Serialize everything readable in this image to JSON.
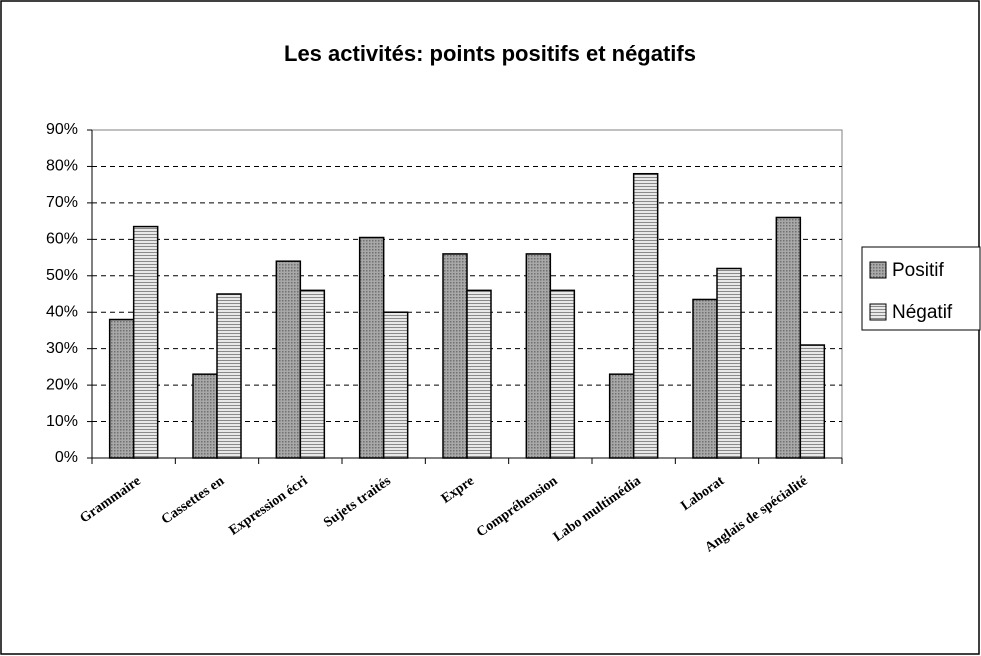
{
  "chart_data": {
    "type": "bar",
    "title": "Les activités: points positifs et négatifs",
    "categories": [
      "Grammaire",
      "Cassettes en",
      "Expression écri",
      "Sujets traités",
      "Expre",
      "Compréhension",
      "Labo multimédia",
      "Laborat",
      "Anglais de spécialité"
    ],
    "series": [
      {
        "name": "Positif",
        "color": "#a8a8a8",
        "values": [
          38,
          23,
          54,
          60.5,
          56,
          56,
          23,
          43.5,
          66
        ]
      },
      {
        "name": "Négatif",
        "color": "#e8e8e8",
        "values": [
          63.5,
          45,
          46,
          40,
          46,
          46,
          78,
          52,
          31
        ]
      }
    ],
    "ylim": [
      0,
      90
    ],
    "yticks": [
      {
        "value": 0,
        "label": "0%"
      },
      {
        "value": 10,
        "label": "10%"
      },
      {
        "value": 20,
        "label": "20%"
      },
      {
        "value": 30,
        "label": "30%"
      },
      {
        "value": 40,
        "label": "40%"
      },
      {
        "value": 50,
        "label": "50%"
      },
      {
        "value": 60,
        "label": "60%"
      },
      {
        "value": 70,
        "label": "70%"
      },
      {
        "value": 80,
        "label": "80%"
      },
      {
        "value": 90,
        "label": "90%"
      }
    ],
    "grid": true,
    "legend": "right"
  }
}
